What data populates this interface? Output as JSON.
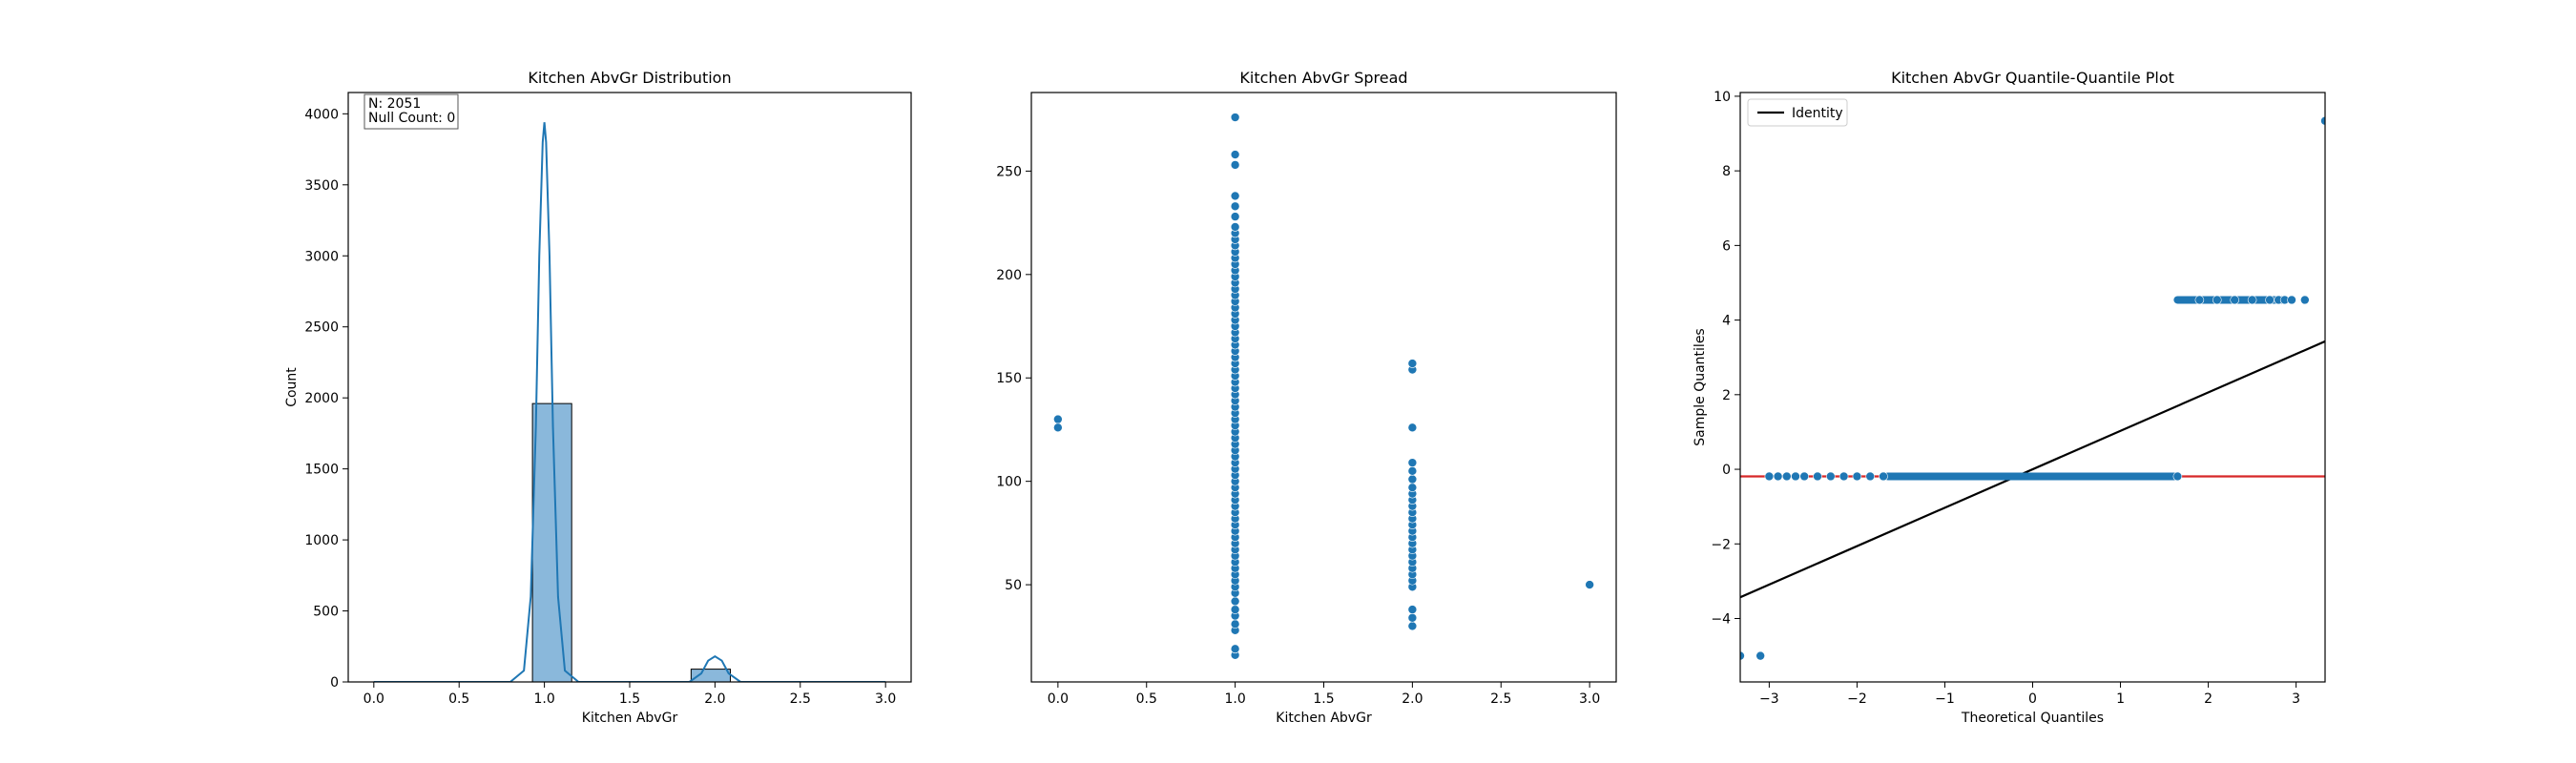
{
  "chart_data": [
    {
      "type": "bar",
      "title": "Kitchen AbvGr Distribution",
      "xlabel": "Kitchen AbvGr",
      "ylabel": "Count",
      "xlim": [
        -0.15,
        3.15
      ],
      "ylim": [
        0,
        4150
      ],
      "xticks": [
        0.0,
        0.5,
        1.0,
        1.5,
        2.0,
        2.5,
        3.0
      ],
      "xtick_labels": [
        "0.0",
        "0.5",
        "1.0",
        "1.5",
        "2.0",
        "2.5",
        "3.0"
      ],
      "yticks": [
        0,
        500,
        1000,
        1500,
        2000,
        2500,
        3000,
        3500,
        4000
      ],
      "ytick_labels": [
        "0",
        "500",
        "1000",
        "1500",
        "2000",
        "2500",
        "3000",
        "3500",
        "4000"
      ],
      "bars": [
        {
          "x0": 0.93,
          "x1": 1.16,
          "value": 1960
        },
        {
          "x0": 1.86,
          "x1": 2.09,
          "value": 90
        }
      ],
      "kde": {
        "x": [
          0.0,
          0.8,
          0.88,
          0.92,
          0.95,
          0.97,
          0.99,
          1.0,
          1.01,
          1.03,
          1.05,
          1.08,
          1.12,
          1.2,
          1.85,
          1.92,
          1.96,
          2.0,
          2.04,
          2.08,
          2.15,
          3.0
        ],
        "y": [
          0,
          0,
          80,
          600,
          1800,
          3000,
          3800,
          3940,
          3800,
          3000,
          1800,
          600,
          80,
          0,
          0,
          60,
          150,
          180,
          150,
          60,
          0,
          0
        ]
      },
      "annotation": [
        "N: 2051",
        "Null Count: 0"
      ],
      "grid": false,
      "colors": {
        "bar_fill": "#8ab8db",
        "line": "#1f77b4"
      }
    },
    {
      "type": "scatter",
      "title": "Kitchen AbvGr Spread",
      "xlabel": "Kitchen AbvGr",
      "ylabel": "",
      "xlim": [
        -0.15,
        3.15
      ],
      "ylim": [
        3,
        288
      ],
      "xticks": [
        0.0,
        0.5,
        1.0,
        1.5,
        2.0,
        2.5,
        3.0
      ],
      "xtick_labels": [
        "0.0",
        "0.5",
        "1.0",
        "1.5",
        "2.0",
        "2.5",
        "3.0"
      ],
      "yticks": [
        50,
        100,
        150,
        200,
        250
      ],
      "ytick_labels": [
        "50",
        "100",
        "150",
        "200",
        "250"
      ],
      "points": [
        [
          0,
          130
        ],
        [
          0,
          126
        ],
        [
          1,
          16
        ],
        [
          1,
          19
        ],
        [
          1,
          28
        ],
        [
          1,
          31
        ],
        [
          1,
          35
        ],
        [
          1,
          38
        ],
        [
          1,
          42
        ],
        [
          1,
          46
        ],
        [
          1,
          49
        ],
        [
          1,
          52
        ],
        [
          1,
          55
        ],
        [
          1,
          58
        ],
        [
          1,
          61
        ],
        [
          1,
          64
        ],
        [
          1,
          67
        ],
        [
          1,
          70
        ],
        [
          1,
          73
        ],
        [
          1,
          76
        ],
        [
          1,
          79
        ],
        [
          1,
          82
        ],
        [
          1,
          85
        ],
        [
          1,
          88
        ],
        [
          1,
          91
        ],
        [
          1,
          94
        ],
        [
          1,
          97
        ],
        [
          1,
          100
        ],
        [
          1,
          103
        ],
        [
          1,
          106
        ],
        [
          1,
          109
        ],
        [
          1,
          112
        ],
        [
          1,
          115
        ],
        [
          1,
          118
        ],
        [
          1,
          121
        ],
        [
          1,
          124
        ],
        [
          1,
          127
        ],
        [
          1,
          130
        ],
        [
          1,
          133
        ],
        [
          1,
          136
        ],
        [
          1,
          139
        ],
        [
          1,
          142
        ],
        [
          1,
          145
        ],
        [
          1,
          148
        ],
        [
          1,
          151
        ],
        [
          1,
          154
        ],
        [
          1,
          157
        ],
        [
          1,
          160
        ],
        [
          1,
          163
        ],
        [
          1,
          166
        ],
        [
          1,
          169
        ],
        [
          1,
          172
        ],
        [
          1,
          175
        ],
        [
          1,
          178
        ],
        [
          1,
          181
        ],
        [
          1,
          184
        ],
        [
          1,
          187
        ],
        [
          1,
          190
        ],
        [
          1,
          193
        ],
        [
          1,
          196
        ],
        [
          1,
          199
        ],
        [
          1,
          202
        ],
        [
          1,
          205
        ],
        [
          1,
          208
        ],
        [
          1,
          211
        ],
        [
          1,
          214
        ],
        [
          1,
          217
        ],
        [
          1,
          220
        ],
        [
          1,
          223
        ],
        [
          1,
          228
        ],
        [
          1,
          233
        ],
        [
          1,
          238
        ],
        [
          1,
          253
        ],
        [
          1,
          258
        ],
        [
          1,
          276
        ],
        [
          2,
          30
        ],
        [
          2,
          34
        ],
        [
          2,
          38
        ],
        [
          2,
          49
        ],
        [
          2,
          52
        ],
        [
          2,
          55
        ],
        [
          2,
          58
        ],
        [
          2,
          61
        ],
        [
          2,
          64
        ],
        [
          2,
          67
        ],
        [
          2,
          70
        ],
        [
          2,
          73
        ],
        [
          2,
          76
        ],
        [
          2,
          79
        ],
        [
          2,
          82
        ],
        [
          2,
          85
        ],
        [
          2,
          88
        ],
        [
          2,
          91
        ],
        [
          2,
          94
        ],
        [
          2,
          97
        ],
        [
          2,
          101
        ],
        [
          2,
          105
        ],
        [
          2,
          109
        ],
        [
          2,
          126
        ],
        [
          2,
          154
        ],
        [
          2,
          157
        ],
        [
          3,
          50
        ]
      ],
      "grid": false,
      "colors": {
        "point": "#1f77b4"
      }
    },
    {
      "type": "scatter",
      "title": "Kitchen AbvGr Quantile-Quantile Plot",
      "xlabel": "Theoretical Quantiles",
      "ylabel": "Sample Quantiles",
      "xlim": [
        -3.33,
        3.33
      ],
      "ylim": [
        -5.7,
        10.1
      ],
      "xticks": [
        -3,
        -2,
        -1,
        0,
        1,
        2,
        3
      ],
      "xtick_labels": [
        "−3",
        "−2",
        "−1",
        "0",
        "1",
        "2",
        "3"
      ],
      "yticks": [
        -4,
        -2,
        0,
        2,
        4,
        6,
        8,
        10
      ],
      "ytick_labels": [
        "−4",
        "−2",
        "0",
        "2",
        "4",
        "6",
        "8",
        "10"
      ],
      "segments": [
        {
          "x0": -1.65,
          "x1": 1.65,
          "y": -0.19
        },
        {
          "x0": 1.65,
          "x1": 2.85,
          "y": 4.54
        }
      ],
      "points": [
        [
          -3.33,
          -5.0
        ],
        [
          -3.1,
          -5.0
        ],
        [
          -3.0,
          -0.19
        ],
        [
          -2.9,
          -0.19
        ],
        [
          -2.8,
          -0.19
        ],
        [
          -2.7,
          -0.19
        ],
        [
          -2.6,
          -0.19
        ],
        [
          -2.45,
          -0.19
        ],
        [
          -2.3,
          -0.19
        ],
        [
          -2.15,
          -0.19
        ],
        [
          -2.0,
          -0.19
        ],
        [
          -1.85,
          -0.19
        ],
        [
          -1.7,
          -0.19
        ],
        [
          1.65,
          -0.19
        ],
        [
          1.9,
          4.54
        ],
        [
          2.1,
          4.54
        ],
        [
          2.3,
          4.54
        ],
        [
          2.5,
          4.54
        ],
        [
          2.7,
          4.54
        ],
        [
          2.8,
          4.54
        ],
        [
          2.87,
          4.54
        ],
        [
          2.95,
          4.54
        ],
        [
          3.1,
          4.54
        ],
        [
          3.33,
          9.34
        ]
      ],
      "lines": [
        {
          "name": "Identity",
          "x": [
            -3.33,
            3.33
          ],
          "y": [
            -3.43,
            3.43
          ],
          "color": "#000000"
        },
        {
          "name": "",
          "x": [
            -3.33,
            3.33
          ],
          "y": [
            -0.19,
            -0.19
          ],
          "color": "#d62728"
        }
      ],
      "legend": {
        "position": "top-left",
        "entries": [
          "Identity"
        ]
      },
      "grid": false,
      "colors": {
        "point": "#1f77b4"
      }
    }
  ]
}
